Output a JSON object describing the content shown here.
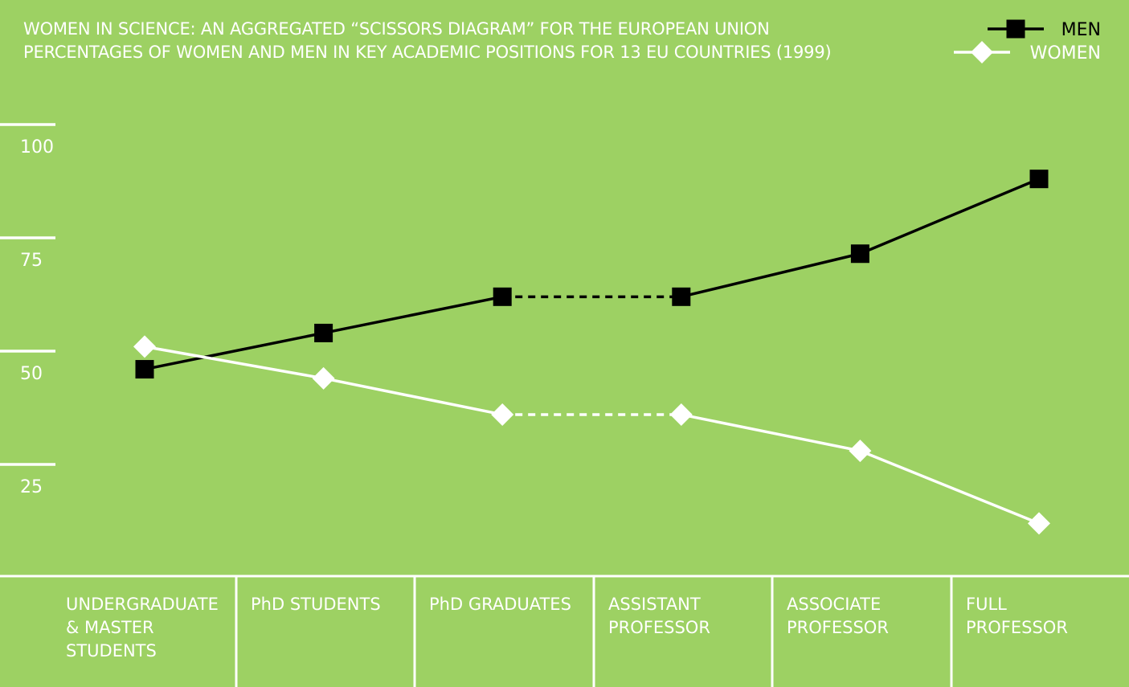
{
  "chart_data": {
    "type": "line",
    "title": "WOMEN IN SCIENCE: AN AGGREGATED “SCISSORS DIAGRAM” FOR THE EUROPEAN UNION",
    "subtitle": "PERCENTAGES OF WOMEN AND MEN IN KEY ACADEMIC POSITIONS FOR 13 EU COUNTRIES (1999)",
    "categories": [
      "UNDERGRADUATE\n& MASTER\nSTUDENTS",
      "PhD STUDENTS",
      "PhD GRADUATES",
      "ASSISTANT\nPROFESSOR",
      "ASSOCIATE\nPROFESSOR",
      "FULL\nPROFESSOR"
    ],
    "series": [
      {
        "name": "MEN",
        "values": [
          46,
          54,
          62,
          62,
          71.5,
          88
        ],
        "color": "#000000",
        "marker": "square"
      },
      {
        "name": "WOMEN",
        "values": [
          51,
          44,
          36,
          36,
          28,
          12
        ],
        "color": "#ffffff",
        "marker": "diamond"
      }
    ],
    "dashed_segment": [
      2,
      3
    ],
    "yticks": [
      100,
      75,
      50,
      25
    ],
    "ylim": [
      0,
      100
    ],
    "legend_position": "top-right",
    "grid": false
  },
  "colors": {
    "background": "#9dd163",
    "men": "#000000",
    "women": "#ffffff"
  }
}
